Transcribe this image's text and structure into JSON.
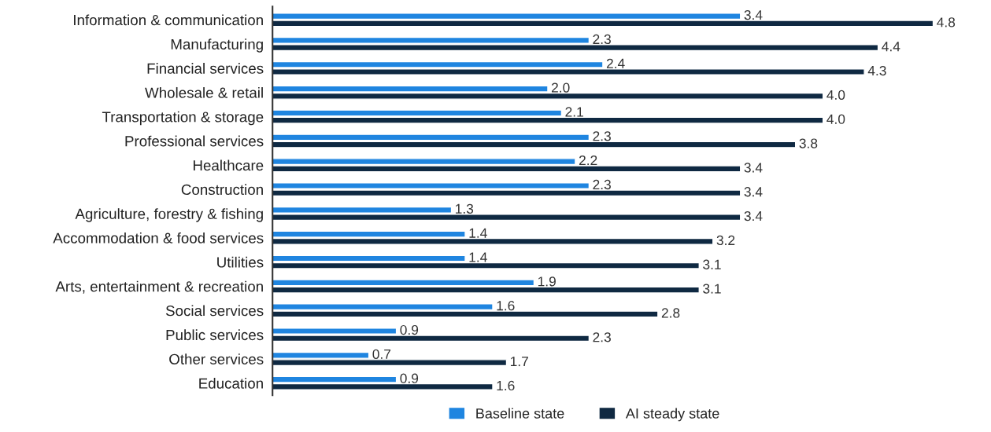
{
  "chart_data": {
    "type": "bar",
    "orientation": "horizontal",
    "categories": [
      "Information & communication",
      "Manufacturing",
      "Financial services",
      "Wholesale & retail",
      "Transportation & storage",
      "Professional services",
      "Healthcare",
      "Construction",
      "Agriculture, forestry & fishing",
      "Accommodation & food services",
      "Utilities",
      "Arts, entertainment & recreation",
      "Social services",
      "Public services",
      "Other services",
      "Education"
    ],
    "series": [
      {
        "name": "Baseline state",
        "color": "#1f85e0",
        "values": [
          3.4,
          2.3,
          2.4,
          2.0,
          2.1,
          2.3,
          2.2,
          2.3,
          1.3,
          1.4,
          1.4,
          1.9,
          1.6,
          0.9,
          0.7,
          0.9
        ],
        "value_labels": [
          "3.4",
          "2.3",
          "2.4",
          "2.0",
          "2.1",
          "2.3",
          "2.2",
          "2.3",
          "1.3",
          "1.4",
          "1.4",
          "1.9",
          "1.6",
          "0.9",
          "0.7",
          "0.9"
        ]
      },
      {
        "name": "AI steady state",
        "color": "#0f2942",
        "values": [
          4.8,
          4.4,
          4.3,
          4.0,
          4.0,
          3.8,
          3.4,
          3.4,
          3.4,
          3.2,
          3.1,
          3.1,
          2.8,
          2.3,
          1.7,
          1.6
        ],
        "value_labels": [
          "4.8",
          "4.4",
          "4.3",
          "4.0",
          "4.0",
          "3.8",
          "3.4",
          "3.4",
          "3.4",
          "3.2",
          "3.1",
          "3.1",
          "2.8",
          "2.3",
          "1.7",
          "1.6"
        ]
      }
    ],
    "legend": "bottom",
    "grid": false
  }
}
